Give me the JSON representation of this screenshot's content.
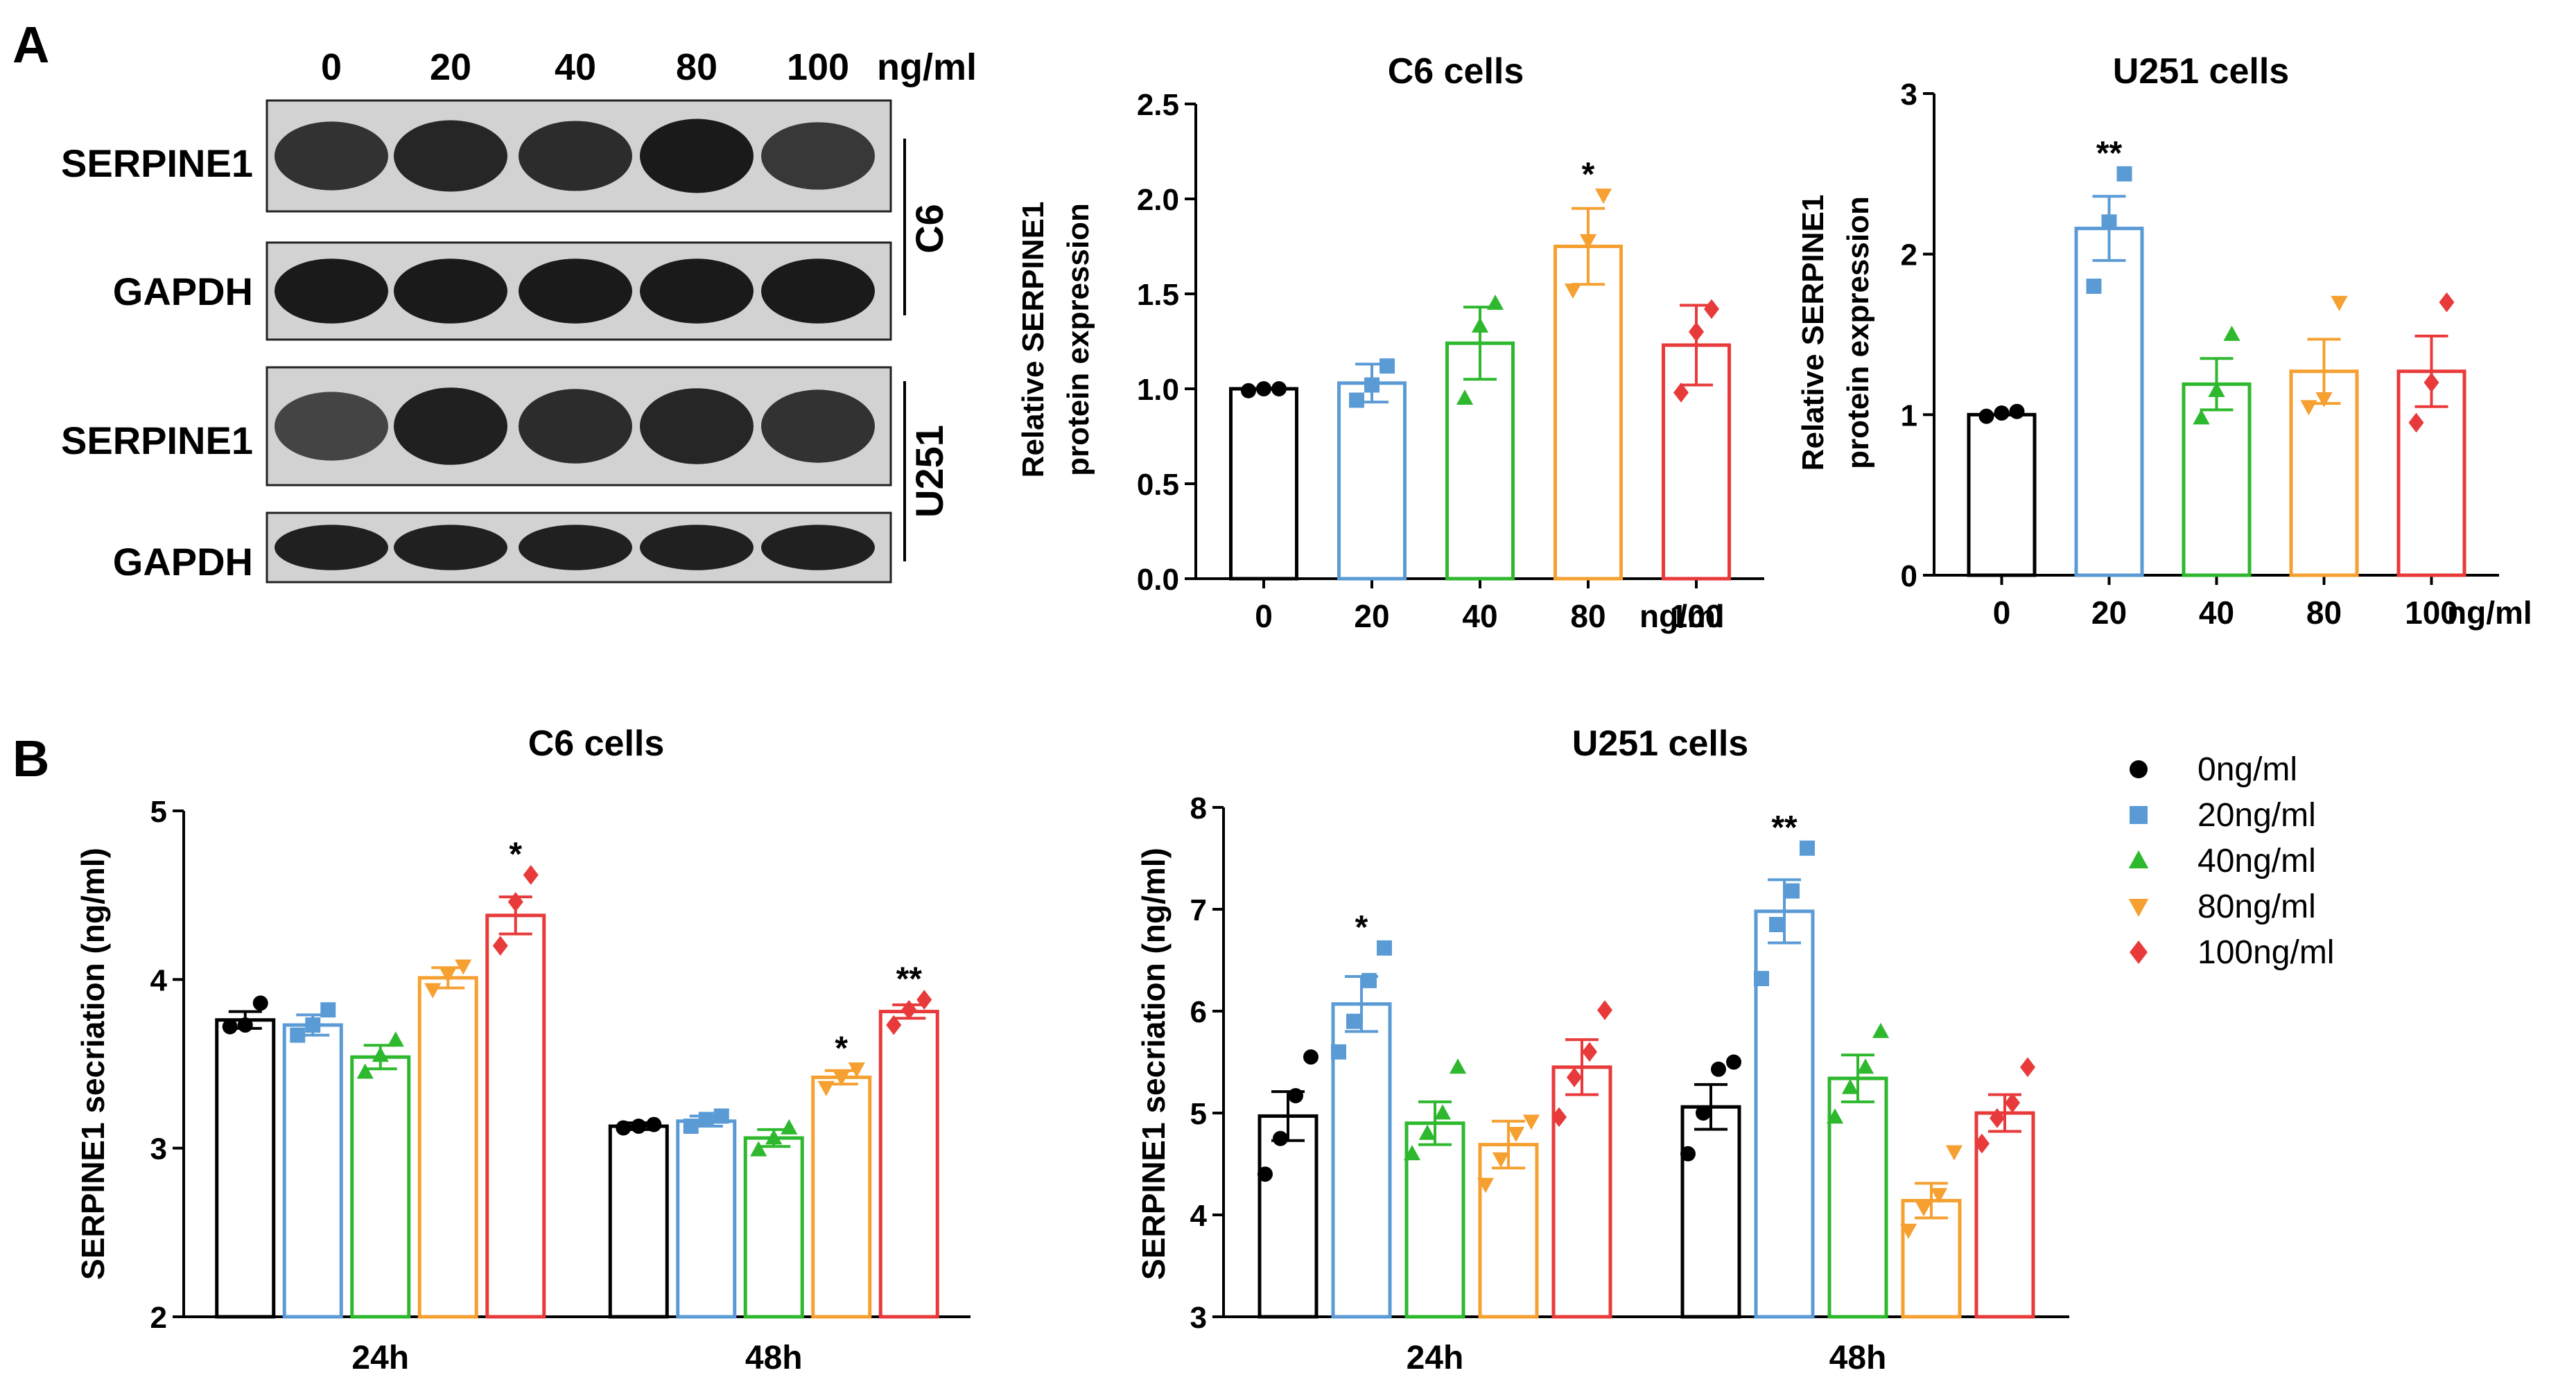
{
  "figure": {
    "panel_labels": [
      "A",
      "B"
    ]
  },
  "western_blot": {
    "concentration_labels": [
      "0",
      "20",
      "40",
      "80",
      "100"
    ],
    "unit": "ng/ml",
    "rows": [
      {
        "label": "SERPINE1",
        "cell_line": "C6",
        "band_intensity": [
          0.75,
          0.85,
          0.8,
          0.95,
          0.7
        ]
      },
      {
        "label": "GAPDH",
        "cell_line": "C6",
        "band_intensity": [
          0.95,
          0.95,
          0.95,
          0.95,
          0.95
        ]
      },
      {
        "label": "SERPINE1",
        "cell_line": "U251",
        "band_intensity": [
          0.6,
          0.9,
          0.8,
          0.85,
          0.75
        ]
      },
      {
        "label": "GAPDH",
        "cell_line": "U251",
        "band_intensity": [
          0.9,
          0.9,
          0.9,
          0.9,
          0.9
        ]
      }
    ],
    "cell_lines": [
      "C6",
      "U251"
    ]
  },
  "legend": {
    "entries": [
      {
        "label": "0ng/ml",
        "color": "#000000",
        "marker": "circle"
      },
      {
        "label": "20ng/ml",
        "color": "#5b9bd5",
        "marker": "square"
      },
      {
        "label": "40ng/ml",
        "color": "#2eb82e",
        "marker": "triangle-up"
      },
      {
        "label": "80ng/ml",
        "color": "#f5a030",
        "marker": "triangle-down"
      },
      {
        "label": "100ng/ml",
        "color": "#e83a3a",
        "marker": "diamond"
      }
    ]
  },
  "chart_data": [
    {
      "id": "A-C6",
      "type": "bar",
      "title": "C6 cells",
      "xlabel": "",
      "ylabel": [
        "Relative SERPINE1",
        "protein expression"
      ],
      "unit_label": "ng/ml",
      "categories": [
        "0",
        "20",
        "40",
        "80",
        "100"
      ],
      "values": [
        1.0,
        1.03,
        1.24,
        1.75,
        1.23
      ],
      "errors": [
        0.0,
        0.1,
        0.19,
        0.2,
        0.21
      ],
      "points": [
        [
          0.99,
          1.0,
          1.0
        ],
        [
          0.94,
          1.02,
          1.12
        ],
        [
          0.95,
          1.33,
          1.45
        ],
        [
          1.52,
          1.78,
          2.02
        ],
        [
          0.98,
          1.3,
          1.42
        ]
      ],
      "annotations": [
        "",
        "",
        "",
        "*",
        ""
      ],
      "ylim": [
        0,
        2.5
      ],
      "yticks": [
        "0.0",
        "0.5",
        "1.0",
        "1.5",
        "2.0",
        "2.5"
      ],
      "colors": [
        "#000000",
        "#5b9bd5",
        "#2eb82e",
        "#f5a030",
        "#e83a3a"
      ],
      "markers": [
        "circle",
        "square",
        "triangle-up",
        "triangle-down",
        "diamond"
      ]
    },
    {
      "id": "A-U251",
      "type": "bar",
      "title": "U251 cells",
      "xlabel": "",
      "ylabel": [
        "Relative SERPINE1",
        "protein expression"
      ],
      "unit_label": "ng/ml",
      "categories": [
        "0",
        "20",
        "40",
        "80",
        "100"
      ],
      "values": [
        1.0,
        2.16,
        1.19,
        1.27,
        1.27
      ],
      "errors": [
        0.0,
        0.2,
        0.16,
        0.2,
        0.22
      ],
      "points": [
        [
          0.99,
          1.01,
          1.02
        ],
        [
          1.8,
          2.2,
          2.5
        ],
        [
          0.98,
          1.15,
          1.5
        ],
        [
          1.05,
          1.1,
          1.7
        ],
        [
          0.95,
          1.2,
          1.7
        ]
      ],
      "annotations": [
        "",
        "**",
        "",
        "",
        ""
      ],
      "ylim": [
        0,
        3
      ],
      "yticks": [
        "0",
        "1",
        "2",
        "3"
      ],
      "colors": [
        "#000000",
        "#5b9bd5",
        "#2eb82e",
        "#f5a030",
        "#e83a3a"
      ],
      "markers": [
        "circle",
        "square",
        "triangle-up",
        "triangle-down",
        "diamond"
      ]
    },
    {
      "id": "B-C6",
      "type": "bar",
      "title": "C6 cells",
      "xlabel": "",
      "ylabel": "SERPINE1 secriation (ng/ml)",
      "categories": [
        "24h",
        "48h"
      ],
      "series": [
        {
          "name": "0ng/ml",
          "values": [
            3.76,
            3.13
          ],
          "errors": [
            0.05,
            0.02
          ],
          "points": [
            [
              3.72,
              3.73,
              3.86
            ],
            [
              3.12,
              3.13,
              3.14
            ]
          ],
          "annotations": [
            "",
            ""
          ]
        },
        {
          "name": "20ng/ml",
          "values": [
            3.73,
            3.16
          ],
          "errors": [
            0.06,
            0.03
          ],
          "points": [
            [
              3.67,
              3.73,
              3.82
            ],
            [
              3.13,
              3.17,
              3.19
            ]
          ],
          "annotations": [
            "",
            ""
          ]
        },
        {
          "name": "40ng/ml",
          "values": [
            3.54,
            3.06
          ],
          "errors": [
            0.07,
            0.05
          ],
          "points": [
            [
              3.45,
              3.55,
              3.64
            ],
            [
              2.99,
              3.06,
              3.12
            ]
          ],
          "annotations": [
            "",
            ""
          ]
        },
        {
          "name": "80ng/ml",
          "values": [
            4.01,
            3.42
          ],
          "errors": [
            0.06,
            0.04
          ],
          "points": [
            [
              3.94,
              4.03,
              4.08
            ],
            [
              3.36,
              3.42,
              3.47
            ]
          ],
          "annotations": [
            "",
            "*"
          ]
        },
        {
          "name": "100ng/ml",
          "values": [
            4.38,
            3.81
          ],
          "errors": [
            0.11,
            0.04
          ],
          "points": [
            [
              4.2,
              4.46,
              4.62
            ],
            [
              3.73,
              3.82,
              3.88
            ]
          ],
          "annotations": [
            "*",
            "**"
          ]
        }
      ],
      "ylim": [
        2,
        5
      ],
      "yticks": [
        "2",
        "3",
        "4",
        "5"
      ],
      "colors": [
        "#000000",
        "#5b9bd5",
        "#2eb82e",
        "#f5a030",
        "#e83a3a"
      ],
      "markers": [
        "circle",
        "square",
        "triangle-up",
        "triangle-down",
        "diamond"
      ]
    },
    {
      "id": "B-U251",
      "type": "bar",
      "title": "U251 cells",
      "xlabel": "",
      "ylabel": "SERPINE1 secriation (ng/ml)",
      "categories": [
        "24h",
        "48h"
      ],
      "series": [
        {
          "name": "0ng/ml",
          "values": [
            4.97,
            5.06
          ],
          "errors": [
            0.24,
            0.22
          ],
          "points": [
            [
              4.4,
              4.75,
              5.17,
              5.55
            ],
            [
              4.6,
              5.0,
              5.43,
              5.5
            ]
          ],
          "annotations": [
            "",
            ""
          ]
        },
        {
          "name": "20ng/ml",
          "values": [
            6.07,
            6.98
          ],
          "errors": [
            0.27,
            0.31
          ],
          "points": [
            [
              5.6,
              5.9,
              6.3,
              6.62
            ],
            [
              6.32,
              6.85,
              7.18,
              7.6
            ]
          ],
          "annotations": [
            "*",
            "**"
          ]
        },
        {
          "name": "40ng/ml",
          "values": [
            4.9,
            5.34
          ],
          "errors": [
            0.21,
            0.23
          ],
          "points": [
            [
              4.6,
              4.8,
              5.0,
              5.45
            ],
            [
              4.96,
              5.25,
              5.45,
              5.8
            ]
          ],
          "annotations": [
            "",
            ""
          ]
        },
        {
          "name": "80ng/ml",
          "values": [
            4.69,
            4.14
          ],
          "errors": [
            0.23,
            0.17
          ],
          "points": [
            [
              4.3,
              4.55,
              4.8,
              4.92
            ],
            [
              3.85,
              4.07,
              4.2,
              4.62
            ]
          ],
          "annotations": [
            "",
            ""
          ]
        },
        {
          "name": "100ng/ml",
          "values": [
            5.45,
            5.0
          ],
          "errors": [
            0.27,
            0.18
          ],
          "points": [
            [
              4.96,
              5.35,
              5.6,
              6.01
            ],
            [
              4.7,
              4.95,
              5.1,
              5.45
            ]
          ],
          "annotations": [
            "",
            ""
          ]
        }
      ],
      "ylim": [
        3,
        8
      ],
      "yticks": [
        "3",
        "4",
        "5",
        "6",
        "7",
        "8"
      ],
      "colors": [
        "#000000",
        "#5b9bd5",
        "#2eb82e",
        "#f5a030",
        "#e83a3a"
      ],
      "markers": [
        "circle",
        "square",
        "triangle-up",
        "triangle-down",
        "diamond"
      ]
    }
  ]
}
